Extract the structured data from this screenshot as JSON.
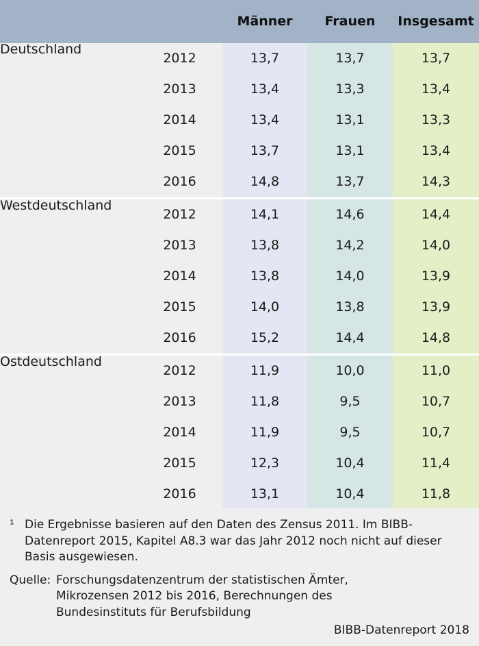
{
  "table": {
    "columns": [
      "",
      "",
      "Männer",
      "Frauen",
      "Insgesamt"
    ],
    "groups": [
      {
        "region": "Deutschland",
        "rows": [
          {
            "year": "2012",
            "m": "13,7",
            "f": "13,7",
            "t": "13,7"
          },
          {
            "year": "2013",
            "m": "13,4",
            "f": "13,3",
            "t": "13,4"
          },
          {
            "year": "2014",
            "m": "13,4",
            "f": "13,1",
            "t": "13,3"
          },
          {
            "year": "2015",
            "m": "13,7",
            "f": "13,1",
            "t": "13,4"
          },
          {
            "year": "2016",
            "m": "14,8",
            "f": "13,7",
            "t": "14,3"
          }
        ]
      },
      {
        "region": "Westdeutschland",
        "rows": [
          {
            "year": "2012",
            "m": "14,1",
            "f": "14,6",
            "t": "14,4"
          },
          {
            "year": "2013",
            "m": "13,8",
            "f": "14,2",
            "t": "14,0"
          },
          {
            "year": "2014",
            "m": "13,8",
            "f": "14,0",
            "t": "13,9"
          },
          {
            "year": "2015",
            "m": "14,0",
            "f": "13,8",
            "t": "13,9"
          },
          {
            "year": "2016",
            "m": "15,2",
            "f": "14,4",
            "t": "14,8"
          }
        ]
      },
      {
        "region": "Ostdeutschland",
        "rows": [
          {
            "year": "2012",
            "m": "11,9",
            "f": "10,0",
            "t": "11,0"
          },
          {
            "year": "2013",
            "m": "11,8",
            "f": "9,5",
            "t": "10,7"
          },
          {
            "year": "2014",
            "m": "11,9",
            "f": "9,5",
            "t": "10,7"
          },
          {
            "year": "2015",
            "m": "12,3",
            "f": "10,4",
            "t": "11,4"
          },
          {
            "year": "2016",
            "m": "13,1",
            "f": "10,4",
            "t": "11,8"
          }
        ]
      }
    ]
  },
  "footer": {
    "footnote_mark": "¹",
    "footnote_text": "Die Ergebnisse basieren auf den Daten des Zensus 2011. Im BIBB-Datenreport 2015, Kapitel A8.3 war das Jahr 2012 noch nicht auf dieser Basis ausgewiesen.",
    "source_label": "Quelle:",
    "source_lines": [
      "Forschungsdatenzentrum der statistischen Ämter,",
      "Mikrozensen 2012 bis 2016, Berechnungen des",
      "Bundesinstituts für Berufsbildung"
    ],
    "credit": "BIBB-Datenreport 2018"
  }
}
